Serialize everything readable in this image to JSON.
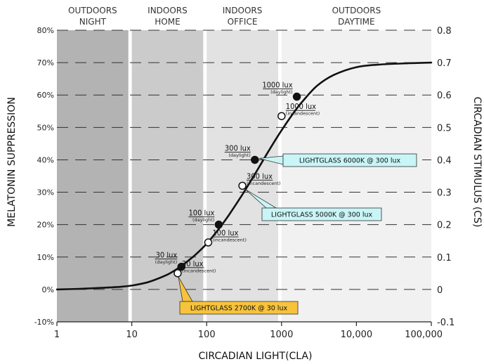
{
  "chart_data": {
    "type": "line",
    "xlabel": "CIRCADIAN LIGHT(CLA)",
    "ylabel_left": "MELATONIN SUPPRESSION",
    "ylabel_right": "CIRCADIAN STIMULUS (CS)",
    "x_scale": "log",
    "xlim": [
      1,
      100000
    ],
    "ylim_left": [
      -10,
      80
    ],
    "ylim_right": [
      -0.1,
      0.8
    ],
    "x_ticks": [
      {
        "value": 1,
        "label": "1"
      },
      {
        "value": 10,
        "label": "10"
      },
      {
        "value": 100,
        "label": "100"
      },
      {
        "value": 1000,
        "label": "1000"
      },
      {
        "value": 10000,
        "label": "10,000"
      },
      {
        "value": 100000,
        "label": "100,000"
      }
    ],
    "y_ticks_left": [
      {
        "value": -10,
        "label": "-10%"
      },
      {
        "value": 0,
        "label": "0%"
      },
      {
        "value": 10,
        "label": "10%"
      },
      {
        "value": 20,
        "label": "20%"
      },
      {
        "value": 30,
        "label": "30%"
      },
      {
        "value": 40,
        "label": "40%"
      },
      {
        "value": 50,
        "label": "50%"
      },
      {
        "value": 60,
        "label": "60%"
      },
      {
        "value": 70,
        "label": "70%"
      },
      {
        "value": 80,
        "label": "80%"
      }
    ],
    "y_ticks_right": [
      {
        "value": -10,
        "label": "-0.1"
      },
      {
        "value": 0,
        "label": "0"
      },
      {
        "value": 10,
        "label": "0.1"
      },
      {
        "value": 20,
        "label": "0.2"
      },
      {
        "value": 30,
        "label": "0.3"
      },
      {
        "value": 40,
        "label": "0.4"
      },
      {
        "value": 50,
        "label": "0.5"
      },
      {
        "value": 60,
        "label": "0.6"
      },
      {
        "value": 70,
        "label": "0.7"
      },
      {
        "value": 80,
        "label": "0.8"
      }
    ],
    "grid": {
      "horizontal_dashed": true
    },
    "zones": [
      {
        "line1": "OUTDOORS",
        "line2": "NIGHT",
        "from": 1,
        "to": 9,
        "color": "#b3b3b3"
      },
      {
        "line1": "INDOORS",
        "line2": "HOME",
        "from": 10,
        "to": 90,
        "color": "#cbcbcb"
      },
      {
        "line1": "INDOORS",
        "line2": "OFFICE",
        "from": 100,
        "to": 900,
        "color": "#e2e2e2"
      },
      {
        "line1": "OUTDOORS",
        "line2": "DAYTIME",
        "from": 1000,
        "to": 100000,
        "color": "#f1f1f1"
      }
    ],
    "curve": {
      "x": [
        1,
        2,
        4,
        7,
        10,
        15,
        20,
        30,
        40,
        50,
        70,
        100,
        150,
        200,
        300,
        400,
        500,
        700,
        1000,
        1500,
        2000,
        3000,
        5000,
        10000,
        20000,
        50000,
        100000
      ],
      "y": [
        0,
        0.2,
        0.5,
        0.8,
        1.2,
        2,
        2.9,
        4.6,
        6.3,
        7.9,
        10.6,
        14.1,
        19.1,
        23.1,
        29.3,
        34.0,
        37.7,
        43.4,
        49.1,
        55.0,
        58.6,
        62.9,
        66.2,
        68.6,
        69.4,
        69.8,
        70
      ]
    },
    "points": [
      {
        "lux": "30 lux",
        "source": "(daylight)",
        "x": 46,
        "y": 7,
        "filled": true,
        "label_side": "left"
      },
      {
        "lux": "30 lux",
        "source": "(incandescent)",
        "x": 41,
        "y": 5,
        "filled": false,
        "label_side": "right"
      },
      {
        "lux": "100 lux",
        "source": "(daylight)",
        "x": 145,
        "y": 20,
        "filled": true,
        "label_side": "left"
      },
      {
        "lux": "100 lux",
        "source": "(incandescent)",
        "x": 105,
        "y": 14.5,
        "filled": false,
        "label_side": "right"
      },
      {
        "lux": "300 lux",
        "source": "(daylight)",
        "x": 440,
        "y": 40,
        "filled": true,
        "label_side": "left"
      },
      {
        "lux": "300 lux",
        "source": "(incandescent)",
        "x": 300,
        "y": 32,
        "filled": false,
        "label_side": "right"
      },
      {
        "lux": "1000 lux",
        "source": "(daylight)",
        "x": 1600,
        "y": 59.5,
        "filled": true,
        "label_side": "left"
      },
      {
        "lux": "1000 lux",
        "source": "(incandescent)",
        "x": 1000,
        "y": 53.5,
        "filled": false,
        "label_side": "right"
      }
    ],
    "callouts": [
      {
        "text": "LIGHTGLASS 6000K @ 300 lux",
        "color": "#c9f5f7",
        "target_point": 4
      },
      {
        "text": "LIGHTGLASS 5000K @ 300 lux",
        "color": "#c9f5f7",
        "target_point": 5
      },
      {
        "text": "LIGHTGLASS 2700K @ 30 lux",
        "color": "#f7c33c",
        "target_point": 1
      }
    ]
  }
}
